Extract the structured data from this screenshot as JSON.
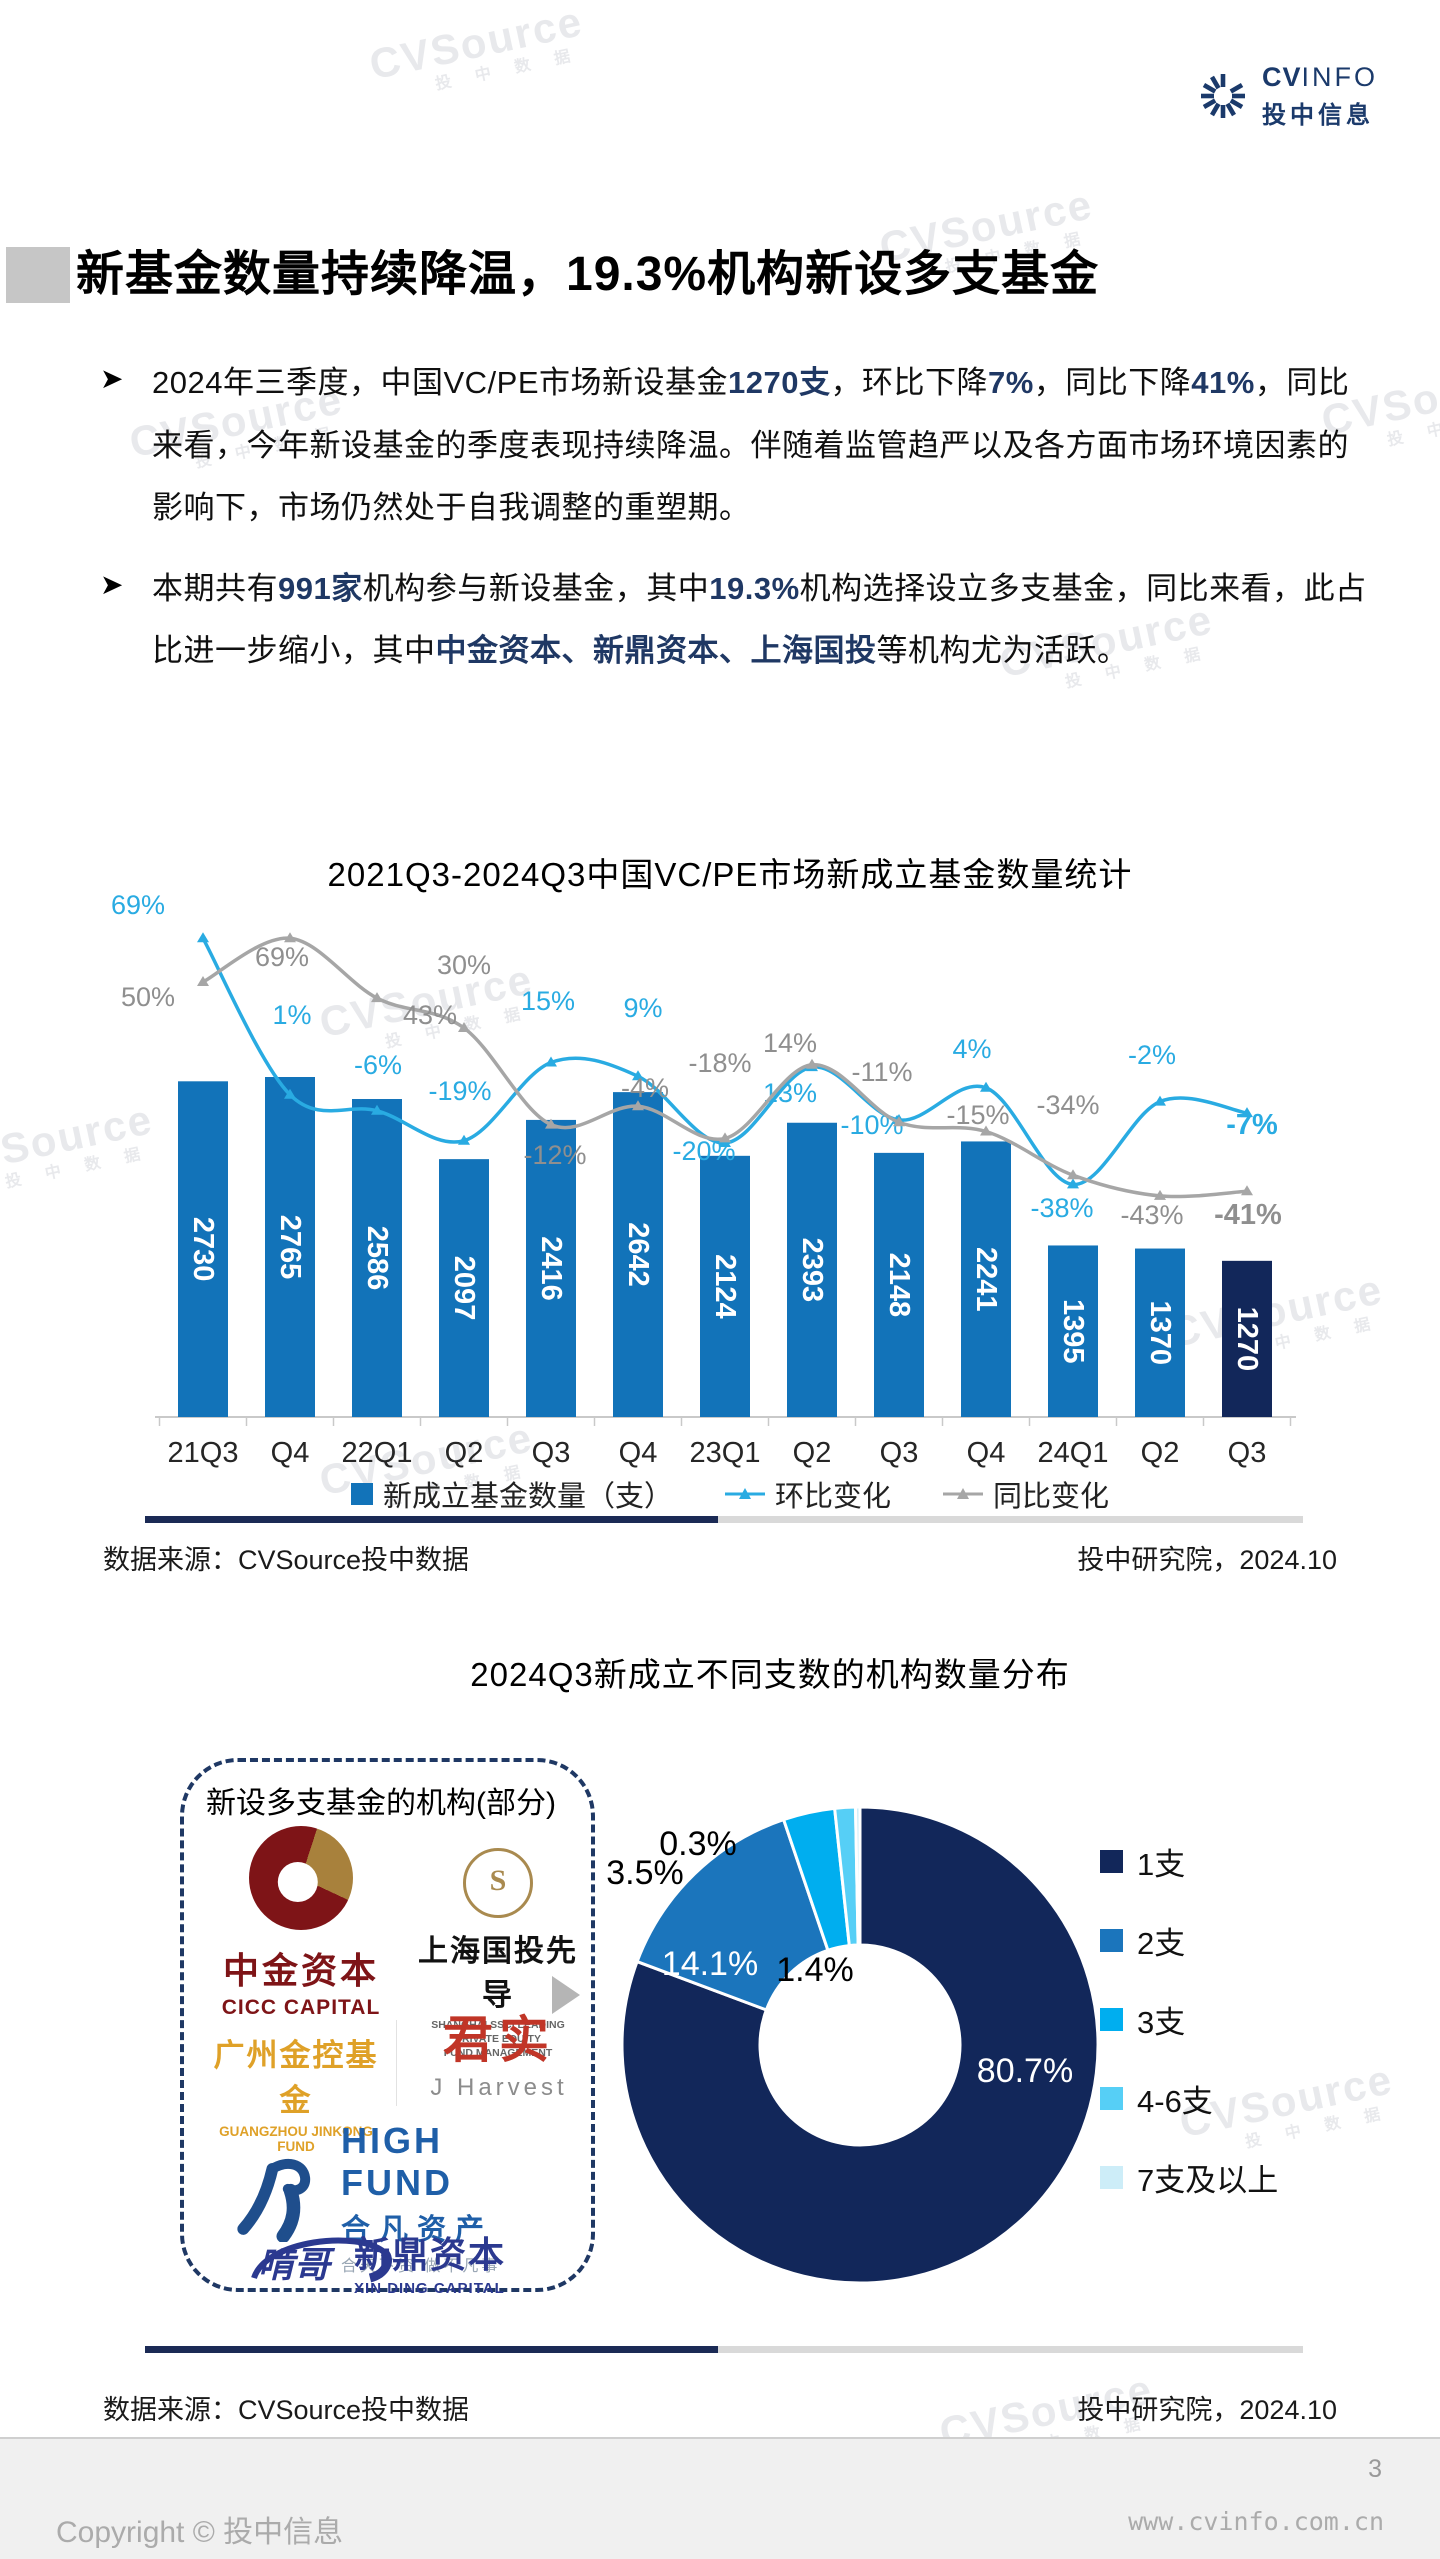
{
  "header": {
    "logo_cv": "CV",
    "logo_info": "INFO",
    "logo_cn": "投中信息"
  },
  "title": "新基金数量持续降温，19.3%机构新设多支基金",
  "bullets": [
    {
      "segments": [
        {
          "t": "2024年三季度，中国VC/PE市场新设基金"
        },
        {
          "t": "1270支",
          "b": true
        },
        {
          "t": "，环比下降"
        },
        {
          "t": "7%",
          "b": true
        },
        {
          "t": "，同比下降"
        },
        {
          "t": "41%",
          "b": true
        },
        {
          "t": "，同比来看，今年新设基金的季度表现持续降温。伴随着监管趋严以及各方面市场环境因素的影响下，市场仍然处于自我调整的重塑期。"
        }
      ]
    },
    {
      "segments": [
        {
          "t": "本期共有"
        },
        {
          "t": "991家",
          "b": true
        },
        {
          "t": "机构参与新设基金，其中"
        },
        {
          "t": "19.3%",
          "b": true
        },
        {
          "t": "机构选择设立多支基金，同比来看，此占比进一步缩小，其中"
        },
        {
          "t": "中金资本、新鼎资本、上海国投",
          "b": true
        },
        {
          "t": "等机构尤为活跃。"
        }
      ]
    }
  ],
  "chart_data": [
    {
      "type": "bar",
      "title": "2021Q3-2024Q3中国VC/PE市场新成立基金数量统计",
      "categories": [
        "21Q3",
        "Q4",
        "22Q1",
        "Q2",
        "Q3",
        "Q4",
        "23Q1",
        "Q2",
        "Q3",
        "Q4",
        "24Q1",
        "Q2",
        "Q3"
      ],
      "bar_series": {
        "name": "新成立基金数量（支）",
        "values": [
          2730,
          2765,
          2586,
          2097,
          2416,
          2642,
          2124,
          2393,
          2148,
          2241,
          1395,
          1370,
          1270
        ],
        "color": "#1273B9",
        "last_bar_color": "#12275A"
      },
      "line_series": [
        {
          "name": "环比变化",
          "values": [
            69,
            1,
            -6,
            -19,
            15,
            9,
            -20,
            13,
            -10,
            4,
            -38,
            -2,
            -7
          ],
          "color": "#29ABE2",
          "label_color": "#29ABE2"
        },
        {
          "name": "同比变化",
          "values": [
            50,
            69,
            43,
            30,
            -12,
            -4,
            -18,
            14,
            -11,
            -15,
            -34,
            -43,
            -41
          ],
          "color": "#A6A6A6",
          "label_color": "#8F8F8F"
        }
      ],
      "value_suffix": "%",
      "grid": false,
      "legend_position": "bottom"
    },
    {
      "type": "pie",
      "title": "2024Q3新成立不同支数的机构数量分布",
      "slices": [
        {
          "label": "1支",
          "value": 80.7,
          "color": "#12275A"
        },
        {
          "label": "2支",
          "value": 14.1,
          "color": "#1B75BC"
        },
        {
          "label": "3支",
          "value": 3.5,
          "color": "#00AEEF"
        },
        {
          "label": "4-6支",
          "value": 1.4,
          "color": "#56CFF6"
        },
        {
          "label": "7支及以上",
          "value": 0.3,
          "color": "#CDEDF8"
        }
      ],
      "donut": true,
      "value_suffix": "%",
      "legend_position": "right"
    }
  ],
  "source": {
    "left": "数据来源：CVSource投中数据",
    "right": "投中研究院，2024.10"
  },
  "org_box": {
    "title": "新设多支基金的机构(部分)",
    "logos": {
      "cicc": {
        "cn": "中金资本",
        "en": "CICC CAPITAL"
      },
      "ssci": {
        "icon": "S",
        "cn": "上海国投先导",
        "en1": "SHANGHAI SSCI LEADING PRIVATE EQUITY",
        "en2": "FUND MANAGEMENT"
      },
      "gzjk": {
        "cn": "广州金控基金",
        "en": "GUANGZHOU JINKONG FUND"
      },
      "junshi": {
        "cn": "君实",
        "en": "J Harvest"
      },
      "highfund": {
        "en": "HIGH FUND",
        "cn": "合凡资产",
        "slogan": "合天下资  做不凡事"
      },
      "xinding": {
        "mark": "啃哥",
        "cn": "新鼎资本",
        "en": "XIN DING CAPITAL"
      }
    }
  },
  "footer": {
    "copyright": "Copyright © 投中信息",
    "page": "3",
    "url": "www.cvinfo.com.cn"
  },
  "watermark": {
    "main": "CVSource",
    "sub": "投 中 数 据"
  },
  "colors": {
    "accent_navy": "#1F3864",
    "brand_navy": "#1B3A6B",
    "divider_navy": "#1B2A55"
  }
}
